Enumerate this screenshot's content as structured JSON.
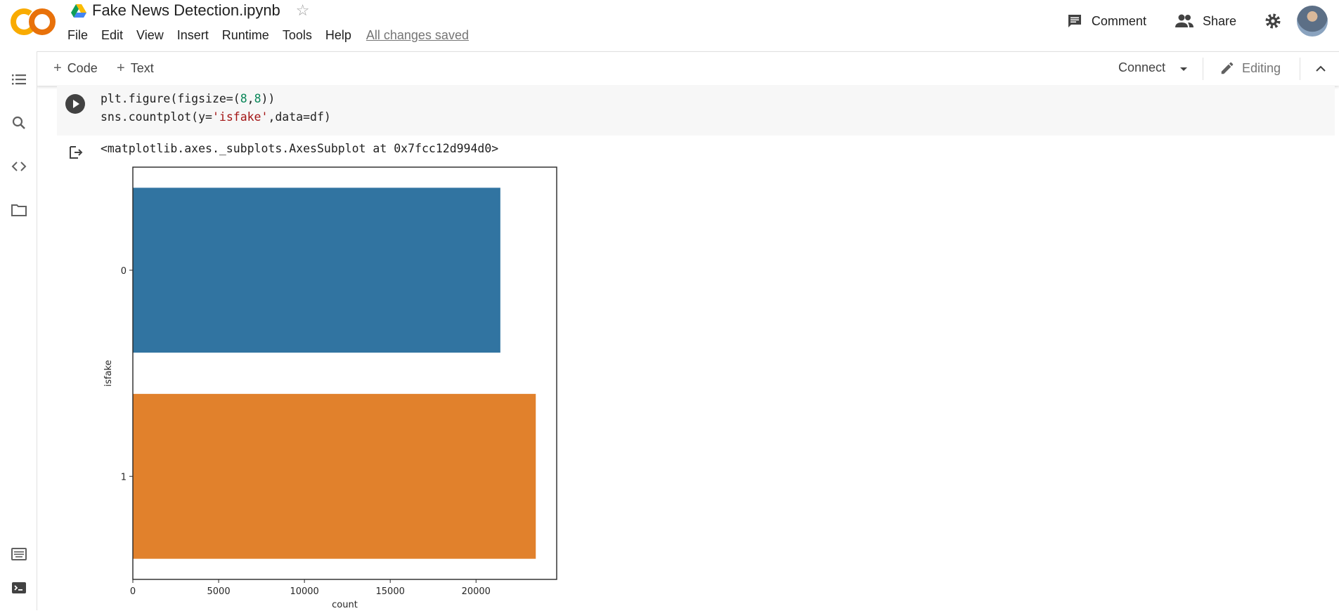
{
  "header": {
    "title": "Fake News Detection.ipynb",
    "menu": [
      "File",
      "Edit",
      "View",
      "Insert",
      "Runtime",
      "Tools",
      "Help"
    ],
    "save_status": "All changes saved",
    "comment_label": "Comment",
    "share_label": "Share"
  },
  "toolbar": {
    "add_code": "Code",
    "add_text": "Text",
    "connect": "Connect",
    "mode": "Editing"
  },
  "cell": {
    "code_line1_prefix": "plt.figure(figsize=(",
    "code_line1_num1": "8",
    "code_line1_comma": ",",
    "code_line1_num2": "8",
    "code_line1_suffix": "))",
    "code_line2_prefix": "sns.countplot(y=",
    "code_line2_str": "'isfake'",
    "code_line2_suffix": ",data=df)",
    "output_text": "<matplotlib.axes._subplots.AxesSubplot at 0x7fcc12d994d0>"
  },
  "colors": {
    "bar0": "#3174a1",
    "bar1": "#e1812c",
    "logo_orange": "#f9ab00",
    "logo_dark": "#e8710a"
  },
  "chart_data": {
    "type": "bar",
    "orientation": "horizontal",
    "categories": [
      "0",
      "1"
    ],
    "values": [
      21417,
      23481
    ],
    "xlabel": "count",
    "ylabel": "isfake",
    "xlim": [
      0,
      24700
    ],
    "xticks": [
      0,
      5000,
      10000,
      15000,
      20000
    ],
    "grid": false
  }
}
